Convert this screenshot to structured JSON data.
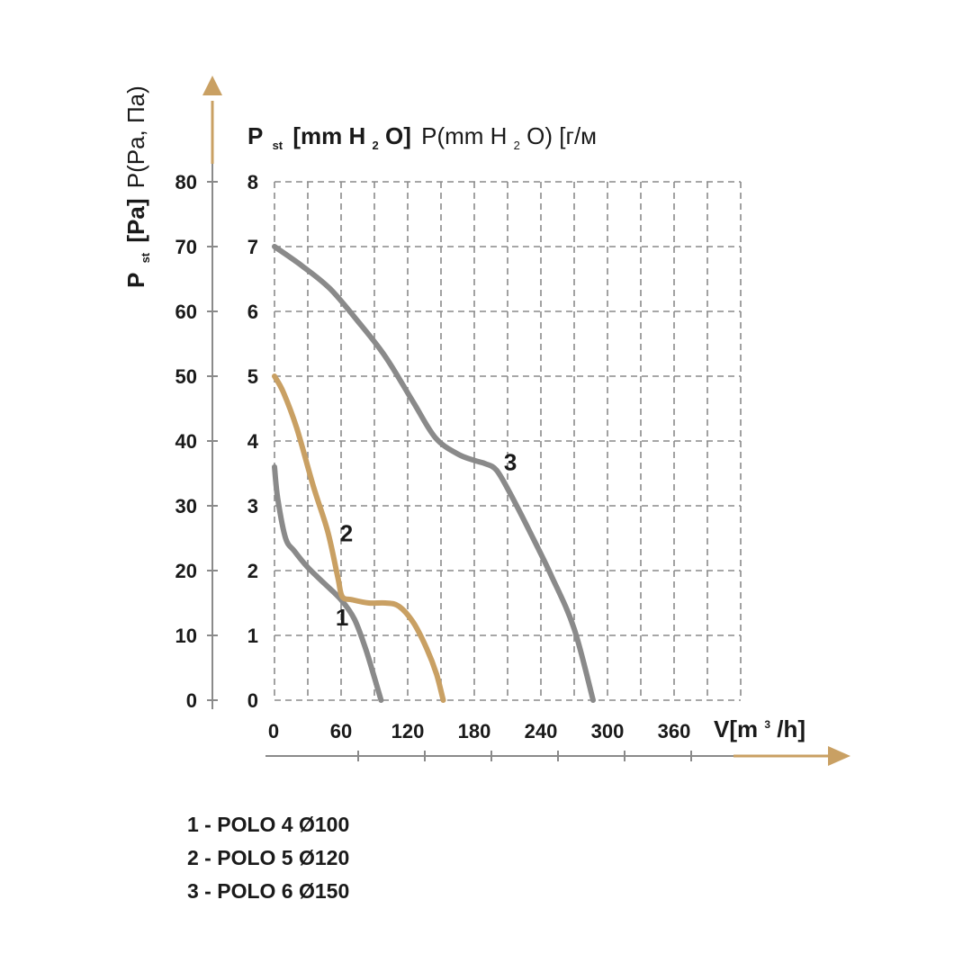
{
  "colors": {
    "axis": "#8a8a8a",
    "accent": "#c9a063",
    "grid": "#8a8a8a",
    "curve_gray": "#8a8a8a",
    "curve_tan": "#c9a063",
    "text": "#1a1a1a"
  },
  "header": {
    "y_left_main": "P",
    "y_left_sub": "st",
    "y_left_unit": "[Pa]",
    "y_left_extra": "P(Pa, Па)",
    "y_right_main": "P",
    "y_right_sub": "st",
    "y_right_unit_a": "[mm H",
    "y_right_unit_sub": "2",
    "y_right_unit_b": "O]",
    "y_right_extra_a": "P(mm H",
    "y_right_extra_sub": "2",
    "y_right_extra_b": "O) [г/м",
    "x_label_a": "V[m",
    "x_label_sup": "3",
    "x_label_b": "/h]"
  },
  "legend": [
    "1 - POLO 4 Ø100",
    "2 - POLO 5 Ø120",
    "3 - POLO 6 Ø150"
  ],
  "chart_data": {
    "type": "line",
    "xlabel": "V[m3/h]",
    "ylabel": "Pst [Pa] P(Pa, Па)",
    "ylabel_right": "Pst [mm H2O] P(mm H2O) [г/м",
    "xlim": [
      0,
      420
    ],
    "ylim": [
      0,
      80
    ],
    "ylim_right": [
      0,
      8
    ],
    "x_ticks": [
      "0",
      "60",
      "120",
      "180",
      "240",
      "300",
      "360"
    ],
    "y_ticks_left": [
      "0",
      "10",
      "20",
      "30",
      "40",
      "50",
      "60",
      "70",
      "80"
    ],
    "y_ticks_right": [
      "0",
      "1",
      "2",
      "3",
      "4",
      "5",
      "6",
      "7",
      "8"
    ],
    "grid": true,
    "series": [
      {
        "name": "1",
        "color": "gray",
        "points": [
          [
            0,
            36
          ],
          [
            3,
            31
          ],
          [
            10,
            25
          ],
          [
            18,
            23
          ],
          [
            30,
            20.5
          ],
          [
            45,
            18
          ],
          [
            60,
            15.5
          ],
          [
            72,
            12.5
          ],
          [
            82,
            8
          ],
          [
            90,
            3.5
          ],
          [
            96,
            0
          ]
        ]
      },
      {
        "name": "2",
        "color": "tan",
        "points": [
          [
            0,
            50
          ],
          [
            8,
            47.5
          ],
          [
            20,
            42
          ],
          [
            35,
            33
          ],
          [
            48,
            26
          ],
          [
            57,
            19
          ],
          [
            61,
            16
          ],
          [
            70,
            15.5
          ],
          [
            85,
            15
          ],
          [
            100,
            15
          ],
          [
            112,
            14.5
          ],
          [
            125,
            12
          ],
          [
            137,
            8
          ],
          [
            146,
            4
          ],
          [
            152,
            0
          ]
        ]
      },
      {
        "name": "3",
        "color": "gray",
        "points": [
          [
            0,
            70
          ],
          [
            25,
            67
          ],
          [
            50,
            63.5
          ],
          [
            75,
            58.5
          ],
          [
            100,
            53
          ],
          [
            125,
            46
          ],
          [
            145,
            40.5
          ],
          [
            165,
            38
          ],
          [
            180,
            37
          ],
          [
            190,
            36.5
          ],
          [
            200,
            35.5
          ],
          [
            212,
            32
          ],
          [
            230,
            26
          ],
          [
            250,
            19
          ],
          [
            270,
            11
          ],
          [
            287,
            0
          ]
        ]
      }
    ]
  }
}
